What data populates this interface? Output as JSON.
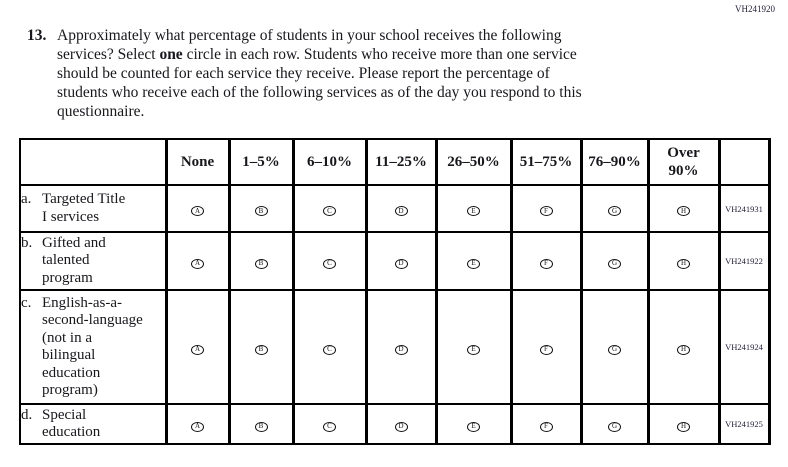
{
  "page": {
    "top_right_code": "VH241920"
  },
  "question": {
    "number": "13.",
    "segments": {
      "before_bold": "Approximately what percentage of students in your school receives the following\nservices? Select ",
      "bold": "one",
      "after_bold": " circle in each row. Students who receive more than one service\nshould be counted for each service they receive. Please report the percentage of\nstudents who receive each of the following services as of the day you respond to this\nquestionnaire."
    }
  },
  "table": {
    "column_headers": [
      "None",
      "1–5%",
      "6–10%",
      "11–25%",
      "26–50%",
      "51–75%",
      "76–90%",
      "Over\n90%"
    ],
    "option_letters": [
      "A",
      "B",
      "C",
      "D",
      "E",
      "F",
      "G",
      "H"
    ],
    "rows": [
      {
        "item_letter": "a.",
        "label": "Targeted Title\nI services",
        "code": "VH241931"
      },
      {
        "item_letter": "b.",
        "label": "Gifted and\ntalented\nprogram",
        "code": "VH241922"
      },
      {
        "item_letter": "c.",
        "label": "English-as-a-\nsecond-language\n(not in a\nbilingual\neducation\nprogram)",
        "code": "VH241924"
      },
      {
        "item_letter": "d.",
        "label": "Special\neducation",
        "code": "VH241925"
      }
    ]
  },
  "colors": {
    "background": "#ffffff",
    "text": "#17171c",
    "border": "#000000"
  }
}
